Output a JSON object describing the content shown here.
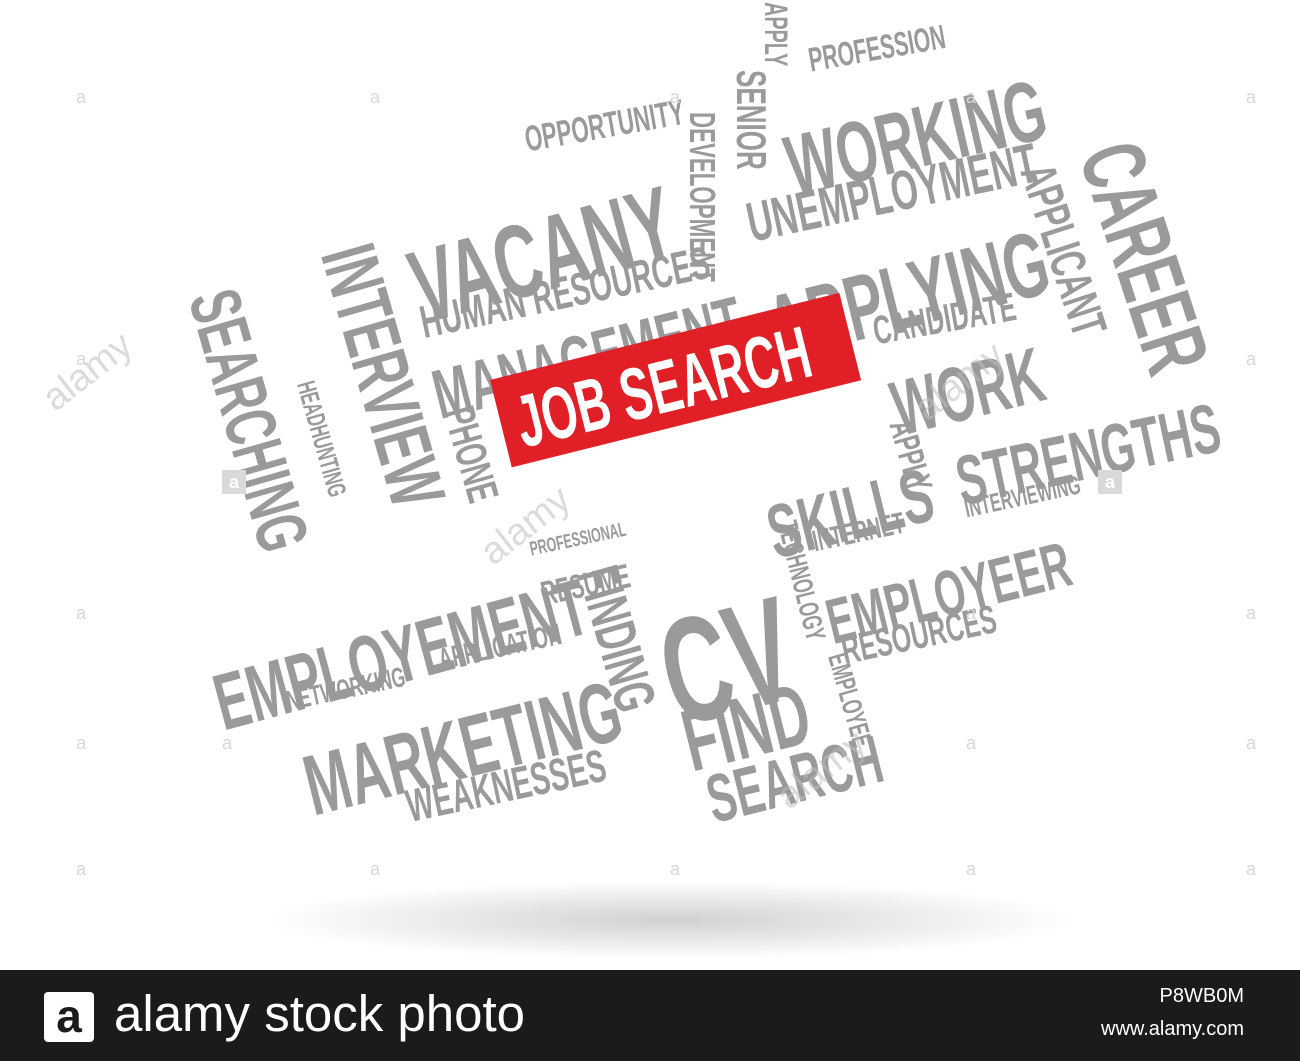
{
  "cloud": {
    "highlight": "JOB SEARCH",
    "words": {
      "apply_top": "APPLY",
      "profession": "PROFESSION",
      "working": "WORKING",
      "senior": "SENIOR",
      "opportunity": "OPPORTUNITY",
      "development": "DEVELOPMENT",
      "unemployment": "UNEMPLOYMENT",
      "career": "CAREER",
      "vacany": "VACANY",
      "applying": "APPLYING",
      "applicant": "APPLICANT",
      "human_resources": "HUMAN RESOURCES",
      "interview": "INTERVIEW",
      "candidate": "CANDIDATE",
      "management": "MANAGEMENT",
      "searching": "SEARCHING",
      "work": "WORK",
      "strengths": "STRENGTHS",
      "headhunting": "HEADHUNTING",
      "phone": "PHONE",
      "skills": "SKILLS",
      "apply_mid": "APPLY",
      "interviewing": "INTERVIEWING",
      "professional": "PROFESSIONAL",
      "cv": "CV",
      "internet": "INTERNET",
      "resume": "RESUME",
      "technology": "TECHNOLOGY",
      "employeer": "EMPLOYEER",
      "employement": "EMPLOYEMENT",
      "finding": "FINDING",
      "resources": "RESOURCES",
      "networking": "NETWORKING",
      "application": "APPLICATION",
      "find": "FIND",
      "employee": "EMPLOYEE",
      "marketing": "MARKETING",
      "search": "SEARCH",
      "weaknesses": "WEAKNESSES"
    }
  },
  "watermark": {
    "small_mark": "a",
    "diagonal_text": "alamy"
  },
  "footer": {
    "logo_letter": "a",
    "brand": "alamy stock photo",
    "image_id": "P8WB0M",
    "site": "www.alamy.com"
  },
  "colors": {
    "word_gray": "#9a9a9a",
    "highlight_red": "#e01f26",
    "footer_bg": "#1b1b1b",
    "footer_text": "#ffffff"
  }
}
